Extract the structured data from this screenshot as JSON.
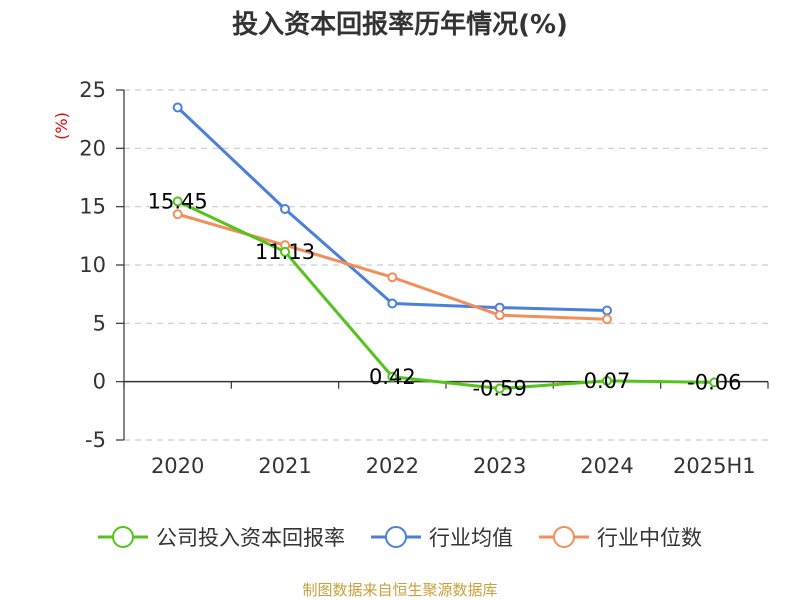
{
  "title": "投入资本回报率历年情况(%)",
  "source": "制图数据来自恒生聚源数据库",
  "chart_data": {
    "type": "line",
    "title": "投入资本回报率历年情况(%)",
    "ylabel": "(%)",
    "categories": [
      "2020",
      "2021",
      "2022",
      "2023",
      "2024",
      "2025H1"
    ],
    "ylim": [
      -5,
      25
    ],
    "yticks": [
      -5,
      0,
      5,
      10,
      15,
      20,
      25
    ],
    "grid": true,
    "legend_position": "bottom",
    "series": [
      {
        "name": "公司投入资本回报率",
        "color": "#52c41a",
        "values": [
          15.45,
          11.13,
          0.42,
          -0.59,
          0.07,
          -0.06
        ],
        "labels": [
          "15.45",
          "11.13",
          "0.42",
          "-0.59",
          "0.07",
          "-0.06"
        ]
      },
      {
        "name": "行业均值",
        "color": "#4a7fdc",
        "values": [
          23.5,
          14.8,
          6.7,
          6.35,
          6.1,
          null
        ]
      },
      {
        "name": "行业中位数",
        "color": "#f28e5a",
        "values": [
          14.35,
          11.7,
          8.95,
          5.7,
          5.35,
          null
        ]
      }
    ]
  }
}
